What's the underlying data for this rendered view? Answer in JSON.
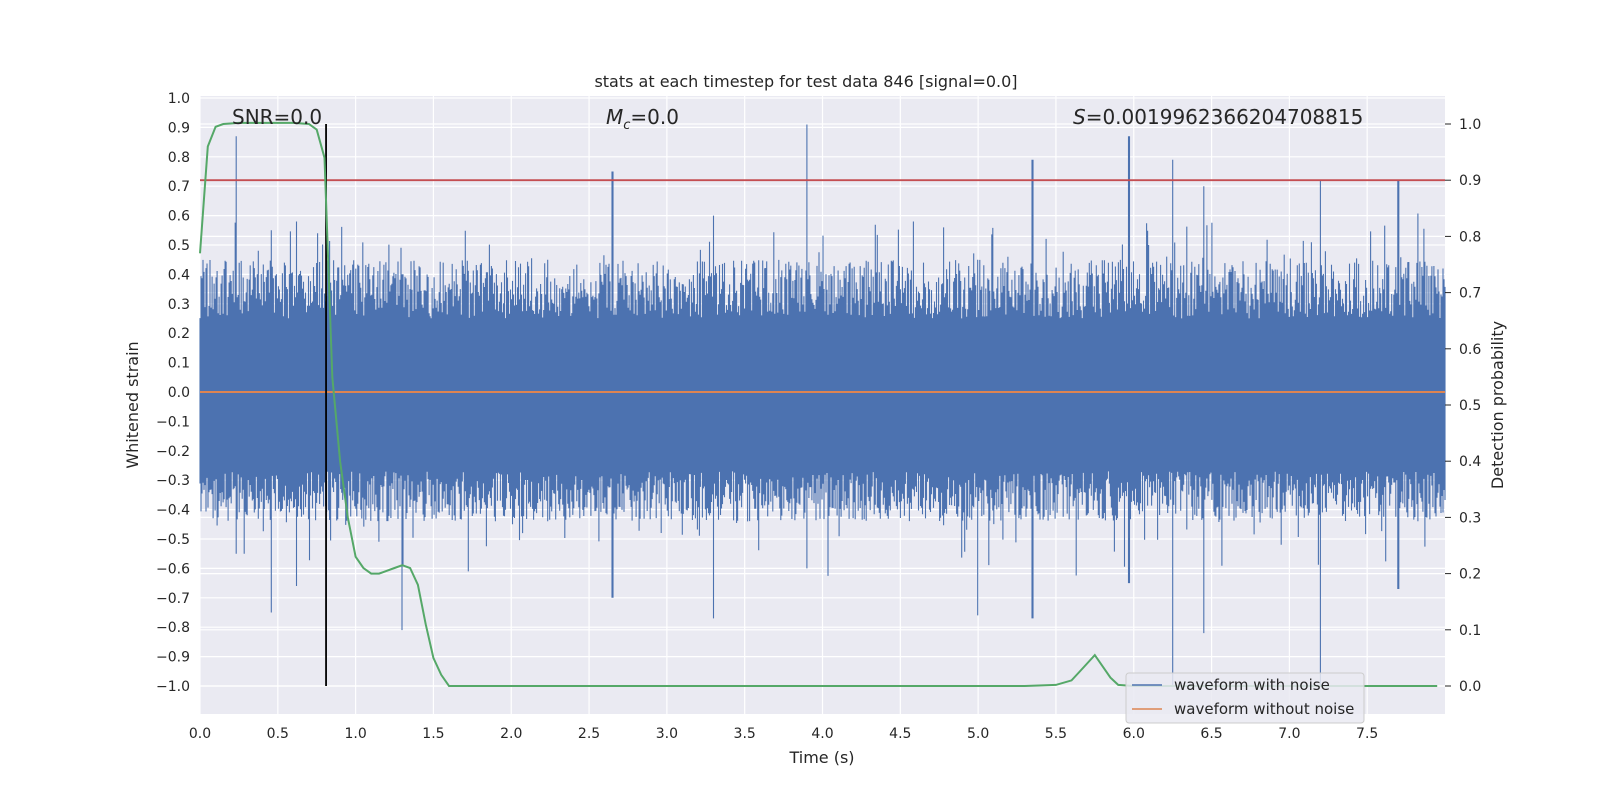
{
  "chart_data": {
    "type": "line",
    "title": "stats at each timestep for test data 846 [signal=0.0]",
    "xlabel": "Time (s)",
    "ylabel_left": "Whitened strain",
    "ylabel_right": "Detection probability",
    "xlim": [
      0.0,
      8.0
    ],
    "ylim_left": [
      -1.08,
      1.0
    ],
    "ylim_right": [
      -0.05,
      1.045
    ],
    "x_ticks": [
      "0.0",
      "0.5",
      "1.0",
      "1.5",
      "2.0",
      "2.5",
      "3.0",
      "3.5",
      "4.0",
      "4.5",
      "5.0",
      "5.5",
      "6.0",
      "6.5",
      "7.0",
      "7.5"
    ],
    "y_left_ticks": [
      "1.0",
      "0.9",
      "0.8",
      "0.7",
      "0.6",
      "0.5",
      "0.4",
      "0.3",
      "0.2",
      "0.1",
      "0.0",
      "−0.1",
      "−0.2",
      "−0.3",
      "−0.4",
      "−0.5",
      "−0.6",
      "−0.7",
      "−0.8",
      "−0.9",
      "−1.0"
    ],
    "y_right_ticks": [
      "1.0",
      "0.9",
      "0.8",
      "0.7",
      "0.6",
      "0.5",
      "0.4",
      "0.3",
      "0.2",
      "0.1",
      "0.0"
    ],
    "annotations": {
      "snr_label": "SNR=0.0",
      "mc_symbol": "M",
      "mc_sub": "c",
      "mc_value": "=0.0",
      "s_symbol": "S",
      "s_value": "=0.0019962366204708815"
    },
    "threshold": 0.9,
    "detection_time": 0.81,
    "series": [
      {
        "name": "waveform with noise",
        "color": "#4c72b0",
        "axis": "left",
        "envelope_peaks": [
          [
            0.23,
            0.87,
            -0.55
          ],
          [
            0.46,
            0.55,
            -0.75
          ],
          [
            0.62,
            0.58,
            -0.66
          ],
          [
            1.3,
            0.4,
            -0.81
          ],
          [
            2.65,
            0.75,
            -0.7
          ],
          [
            3.3,
            0.6,
            -0.77
          ],
          [
            3.9,
            0.91,
            -0.6
          ],
          [
            5.0,
            0.45,
            -0.76
          ],
          [
            5.35,
            0.79,
            -0.77
          ],
          [
            5.97,
            0.87,
            -0.65
          ],
          [
            6.25,
            0.79,
            -1.0
          ],
          [
            6.45,
            0.7,
            -0.82
          ],
          [
            7.2,
            0.72,
            -1.0
          ],
          [
            7.7,
            0.72,
            -0.67
          ]
        ]
      },
      {
        "name": "waveform without noise",
        "color": "#dd8452",
        "axis": "left",
        "x": [
          0.0,
          8.0
        ],
        "y": [
          0.0,
          0.0
        ]
      },
      {
        "name": "detection probability",
        "color": "#55a868",
        "axis": "right",
        "x": [
          0.0,
          0.05,
          0.1,
          0.15,
          0.25,
          0.4,
          0.6,
          0.7,
          0.75,
          0.8,
          0.85,
          0.9,
          0.95,
          1.0,
          1.05,
          1.1,
          1.15,
          1.2,
          1.25,
          1.3,
          1.35,
          1.4,
          1.45,
          1.5,
          1.55,
          1.6,
          1.65,
          1.75,
          2.0,
          3.0,
          4.0,
          5.0,
          5.3,
          5.5,
          5.6,
          5.65,
          5.7,
          5.75,
          5.8,
          5.85,
          5.9,
          6.0,
          6.5,
          7.0,
          7.5,
          7.95
        ],
        "y": [
          0.77,
          0.96,
          0.995,
          1.0,
          1.002,
          1.002,
          1.002,
          1.0,
          0.99,
          0.94,
          0.55,
          0.4,
          0.3,
          0.23,
          0.21,
          0.2,
          0.2,
          0.205,
          0.21,
          0.215,
          0.21,
          0.18,
          0.11,
          0.05,
          0.02,
          0.0,
          0.0,
          0.0,
          0.0,
          0.0,
          0.0,
          0.0,
          0.0,
          0.002,
          0.01,
          0.025,
          0.04,
          0.055,
          0.035,
          0.015,
          0.002,
          0.0,
          0.0,
          0.0,
          0.0,
          0.0
        ]
      },
      {
        "name": "threshold",
        "color": "#c44e52",
        "axis": "right",
        "x": [
          0.0,
          8.0
        ],
        "y": [
          0.9,
          0.9
        ]
      }
    ],
    "legend": [
      "waveform with noise",
      "waveform without noise"
    ],
    "legend_position": "lower-right",
    "background": "#eaeaf2",
    "grid": true
  }
}
